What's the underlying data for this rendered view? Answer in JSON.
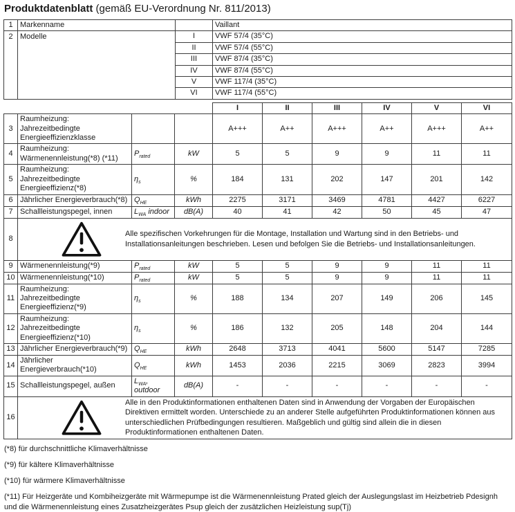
{
  "title": {
    "main": "Produktdatenblatt",
    "suffix": " (gemäß EU-Verordnung Nr. 811/2013)"
  },
  "info_table": {
    "brand_row": {
      "num": "1",
      "label": "Markenname",
      "key": "",
      "value": "Vaillant"
    },
    "models_row": {
      "num": "2",
      "label": "Modelle",
      "models": [
        {
          "key": "I",
          "value": "VWF 57/4 (35°C)"
        },
        {
          "key": "II",
          "value": "VWF 57/4 (55°C)"
        },
        {
          "key": "III",
          "value": "VWF 87/4 (35°C)"
        },
        {
          "key": "IV",
          "value": "VWF 87/4 (55°C)"
        },
        {
          "key": "V",
          "value": "VWF 117/4 (35°C)"
        },
        {
          "key": "VI",
          "value": "VWF 117/4 (55°C)"
        }
      ]
    }
  },
  "main_table": {
    "column_headers": [
      "I",
      "II",
      "III",
      "IV",
      "V",
      "VI"
    ],
    "rows": [
      {
        "num": "3",
        "size": "double",
        "label": "Raumheizung: Jahrezeitbedingte Energieeffizienzklasse",
        "symbol": {
          "base": "",
          "sub": "",
          "suffix": ""
        },
        "unit": "",
        "values": [
          "A+++",
          "A++",
          "A+++",
          "A++",
          "A+++",
          "A++"
        ]
      },
      {
        "num": "4",
        "size": "double",
        "label": "Raumheizung: Wärmenennleistung(*8) (*11)",
        "symbol": {
          "base": "P",
          "sub": "rated",
          "suffix": ""
        },
        "unit": "kW",
        "values": [
          "5",
          "5",
          "9",
          "9",
          "11",
          "11"
        ]
      },
      {
        "num": "5",
        "size": "double",
        "label": "Raumheizung: Jahrezeitbedingte Energieeffizienz(*8)",
        "symbol": {
          "base": "η",
          "sub": "s",
          "suffix": ""
        },
        "unit": "%",
        "values": [
          "184",
          "131",
          "202",
          "147",
          "201",
          "142"
        ]
      },
      {
        "num": "6",
        "size": "single",
        "label": "Jährlicher Energieverbrauch(*8)",
        "symbol": {
          "base": "Q",
          "sub": "HE",
          "suffix": ""
        },
        "unit": "kWh",
        "values": [
          "2275",
          "3171",
          "3469",
          "4781",
          "4427",
          "6227"
        ]
      },
      {
        "num": "7",
        "size": "single",
        "label": "Schallleistungspegel, innen",
        "symbol": {
          "base": "L",
          "sub": "WA",
          "suffix": " indoor"
        },
        "unit": "dB(A)",
        "values": [
          "40",
          "41",
          "42",
          "50",
          "45",
          "47"
        ]
      },
      {
        "num": "8",
        "type": "notice",
        "text": "Alle spezifischen Vorkehrungen für die Montage, Installation und Wartung sind in den Betriebs- und Installationsanleitungen beschrieben. Lesen und befolgen Sie die Betriebs- und Installationsanleitungen."
      },
      {
        "num": "9",
        "size": "single",
        "label": "Wärmenennleistung(*9)",
        "symbol": {
          "base": "P",
          "sub": "rated",
          "suffix": ""
        },
        "unit": "kW",
        "values": [
          "5",
          "5",
          "9",
          "9",
          "11",
          "11"
        ]
      },
      {
        "num": "10",
        "size": "single",
        "label": "Wärmenennleistung(*10)",
        "symbol": {
          "base": "P",
          "sub": "rated",
          "suffix": ""
        },
        "unit": "kW",
        "values": [
          "5",
          "5",
          "9",
          "9",
          "11",
          "11"
        ]
      },
      {
        "num": "11",
        "size": "double",
        "label": "Raumheizung: Jahrezeitbedingte Energieeffizienz(*9)",
        "symbol": {
          "base": "η",
          "sub": "s",
          "suffix": ""
        },
        "unit": "%",
        "values": [
          "188",
          "134",
          "207",
          "149",
          "206",
          "145"
        ]
      },
      {
        "num": "12",
        "size": "double",
        "label": "Raumheizung: Jahrezeitbedingte Energieeffizienz(*10)",
        "symbol": {
          "base": "η",
          "sub": "s",
          "suffix": ""
        },
        "unit": "%",
        "values": [
          "186",
          "132",
          "205",
          "148",
          "204",
          "144"
        ]
      },
      {
        "num": "13",
        "size": "single",
        "label": "Jährlicher Energieverbrauch(*9)",
        "symbol": {
          "base": "Q",
          "sub": "HE",
          "suffix": ""
        },
        "unit": "kWh",
        "values": [
          "2648",
          "3713",
          "4041",
          "5600",
          "5147",
          "7285"
        ]
      },
      {
        "num": "14",
        "size": "single",
        "label": "Jährlicher Energieverbrauch(*10)",
        "symbol": {
          "base": "Q",
          "sub": "HE",
          "suffix": ""
        },
        "unit": "kWh",
        "values": [
          "1453",
          "2036",
          "2215",
          "3069",
          "2823",
          "3994"
        ]
      },
      {
        "num": "15",
        "size": "single",
        "label": "Schallleistungspegel, außen",
        "symbol": {
          "base": "L",
          "sub": "WA",
          "suffix": ", outdoor"
        },
        "unit": "dB(A)",
        "values": [
          "-",
          "-",
          "-",
          "-",
          "-",
          "-"
        ]
      },
      {
        "num": "16",
        "type": "notice",
        "text": "Alle in den Produktinformationen enthaltenen Daten sind in Anwendung der Vorgaben der Europäischen Direktiven ermittelt worden. Unterschiede zu an anderer Stelle aufgeführten Produktinformationen können aus unterschiedlichen Prüfbedingungen resultieren. Maßgeblich und gültig sind allein die in diesen Produktinformationen enthaltenen Daten."
      }
    ]
  },
  "footnotes": [
    "(*8) für durchschnittliche Klimaverhältnisse",
    "(*9) für kältere Klimaverhältnisse",
    "(*10) für wärmere Klimaverhältnisse",
    "(*11) Für Heizgeräte und Kombiheizgeräte mit Wärmepumpe ist die Wärmenennleistung Prated gleich der Auslegungslast im Heizbetrieb Pdesignh und die Wärmenennleistung eines Zusatzheizgerätes Psup gleich der zusätzlichen Heizleistung sup(Tj)"
  ],
  "icons": {
    "warning": "warning-triangle"
  },
  "colors": {
    "background": "#ffffff",
    "text": "#1a1a1a",
    "border": "#3c3c3c"
  }
}
